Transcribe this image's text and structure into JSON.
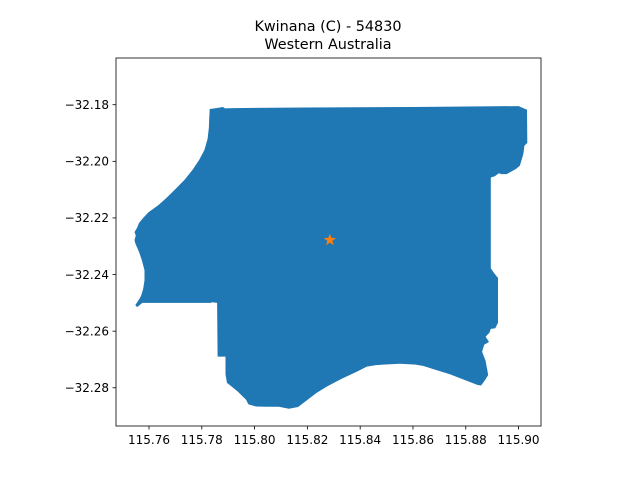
{
  "chart_data": {
    "type": "map",
    "title": "Kwinana (C) - 54830",
    "subtitle": "Western Australia",
    "xlabel": "",
    "ylabel": "",
    "xlim": [
      115.7475,
      115.9085
    ],
    "ylim": [
      -32.2935,
      -32.1635
    ],
    "x_ticks": [
      115.76,
      115.78,
      115.8,
      115.82,
      115.84,
      115.86,
      115.88,
      115.9
    ],
    "x_tick_labels": [
      "115.76",
      "115.78",
      "115.80",
      "115.82",
      "115.84",
      "115.86",
      "115.88",
      "115.90"
    ],
    "y_ticks": [
      -32.18,
      -32.2,
      -32.22,
      -32.24,
      -32.26,
      -32.28
    ],
    "y_tick_labels": [
      "−32.18",
      "−32.20",
      "−32.22",
      "−32.24",
      "−32.26",
      "−32.28"
    ],
    "grid": false,
    "boundary_color": "#1f77b4",
    "marker_color": "#ff7f0e",
    "marker_icon": "star-icon",
    "marker": {
      "lon": 115.8285,
      "lat": -32.2278
    },
    "boundary": [
      [
        115.783,
        -32.1815
      ],
      [
        115.7855,
        -32.1812
      ],
      [
        115.788,
        -32.1808
      ],
      [
        115.7888,
        -32.1813
      ],
      [
        115.792,
        -32.1812
      ],
      [
        115.82,
        -32.181
      ],
      [
        115.86,
        -32.1808
      ],
      [
        115.9,
        -32.1805
      ],
      [
        115.9032,
        -32.1818
      ],
      [
        115.9033,
        -32.1935
      ],
      [
        115.9022,
        -32.1945
      ],
      [
        115.9018,
        -32.1975
      ],
      [
        115.9005,
        -32.2015
      ],
      [
        115.899,
        -32.2027
      ],
      [
        115.8955,
        -32.2045
      ],
      [
        115.8935,
        -32.2045
      ],
      [
        115.8925,
        -32.2042
      ],
      [
        115.891,
        -32.2053
      ],
      [
        115.8895,
        -32.2057
      ],
      [
        115.8895,
        -32.2378
      ],
      [
        115.8905,
        -32.2392
      ],
      [
        115.8922,
        -32.2412
      ],
      [
        115.8922,
        -32.257
      ],
      [
        115.8912,
        -32.259
      ],
      [
        115.8895,
        -32.2592
      ],
      [
        115.889,
        -32.2605
      ],
      [
        115.8875,
        -32.262
      ],
      [
        115.8888,
        -32.2638
      ],
      [
        115.887,
        -32.2648
      ],
      [
        115.8862,
        -32.2672
      ],
      [
        115.8875,
        -32.2705
      ],
      [
        115.8885,
        -32.2755
      ],
      [
        115.8875,
        -32.277
      ],
      [
        115.8858,
        -32.2792
      ],
      [
        115.8845,
        -32.279
      ],
      [
        115.8812,
        -32.2778
      ],
      [
        115.874,
        -32.2752
      ],
      [
        115.868,
        -32.2735
      ],
      [
        115.864,
        -32.2723
      ],
      [
        115.861,
        -32.2718
      ],
      [
        115.855,
        -32.2715
      ],
      [
        115.846,
        -32.272
      ],
      [
        115.8425,
        -32.2725
      ],
      [
        115.839,
        -32.2742
      ],
      [
        115.833,
        -32.2768
      ],
      [
        115.8275,
        -32.2795
      ],
      [
        115.8235,
        -32.2818
      ],
      [
        115.8165,
        -32.2868
      ],
      [
        115.813,
        -32.2874
      ],
      [
        115.8092,
        -32.2867
      ],
      [
        115.8045,
        -32.2867
      ],
      [
        115.8005,
        -32.2866
      ],
      [
        115.7976,
        -32.2858
      ],
      [
        115.7968,
        -32.2842
      ],
      [
        115.7935,
        -32.2812
      ],
      [
        115.7895,
        -32.2782
      ],
      [
        115.789,
        -32.2752
      ],
      [
        115.789,
        -32.269
      ],
      [
        115.786,
        -32.269
      ],
      [
        115.7858,
        -32.25
      ],
      [
        115.7838,
        -32.2498
      ],
      [
        115.7835,
        -32.25
      ],
      [
        115.765,
        -32.25
      ],
      [
        115.7575,
        -32.25
      ],
      [
        115.7555,
        -32.2515
      ],
      [
        115.7548,
        -32.2508
      ],
      [
        115.7562,
        -32.2488
      ],
      [
        115.757,
        -32.2475
      ],
      [
        115.7578,
        -32.245
      ],
      [
        115.7583,
        -32.242
      ],
      [
        115.7583,
        -32.2385
      ],
      [
        115.7573,
        -32.235
      ],
      [
        115.7562,
        -32.232
      ],
      [
        115.7548,
        -32.229
      ],
      [
        115.7545,
        -32.2278
      ],
      [
        115.755,
        -32.2262
      ],
      [
        115.7545,
        -32.225
      ],
      [
        115.7555,
        -32.2235
      ],
      [
        115.7562,
        -32.2218
      ],
      [
        115.7578,
        -32.22
      ],
      [
        115.7598,
        -32.218
      ],
      [
        115.7635,
        -32.2155
      ],
      [
        115.7665,
        -32.213
      ],
      [
        115.77,
        -32.2098
      ],
      [
        115.7735,
        -32.2065
      ],
      [
        115.7765,
        -32.203
      ],
      [
        115.779,
        -32.1995
      ],
      [
        115.781,
        -32.196
      ],
      [
        115.7822,
        -32.192
      ],
      [
        115.7827,
        -32.188
      ],
      [
        115.7828,
        -32.185
      ],
      [
        115.783,
        -32.1815
      ]
    ]
  }
}
